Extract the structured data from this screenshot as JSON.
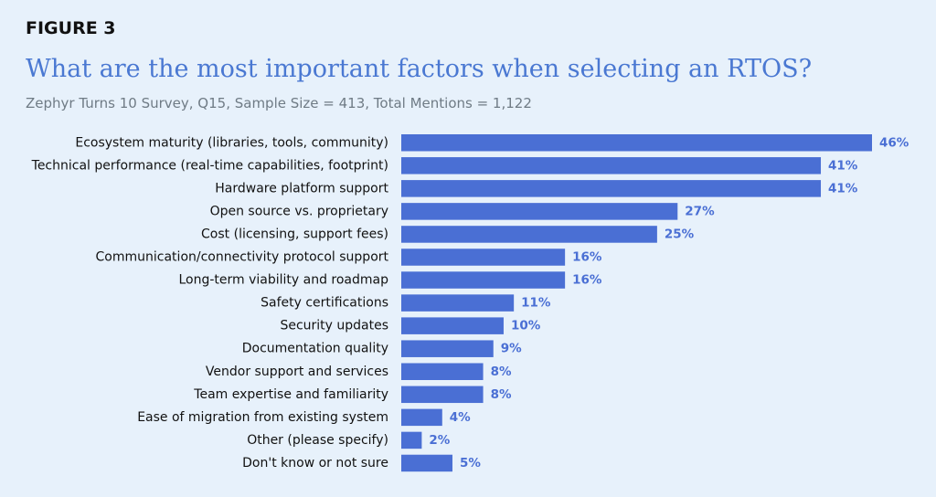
{
  "figure_label": "FIGURE 3",
  "chart_data": {
    "type": "bar",
    "orientation": "horizontal",
    "title": "What are the most important factors when selecting an RTOS?",
    "subtitle": "Zephyr Turns 10 Survey, Q15, Sample Size = 413, Total Mentions = 1,122",
    "categories": [
      "Ecosystem maturity (libraries, tools, community)",
      "Technical performance (real-time capabilities, footprint)",
      "Hardware platform support",
      "Open source vs. proprietary",
      "Cost (licensing, support fees)",
      "Communication/connectivity protocol support",
      "Long-term viability and roadmap",
      "Safety certifications",
      "Security updates",
      "Documentation quality",
      "Vendor support and services",
      "Team expertise and familiarity",
      "Ease of migration from existing system",
      "Other (please specify)",
      "Don't know or not sure"
    ],
    "values": [
      46,
      41,
      41,
      27,
      25,
      16,
      16,
      11,
      10,
      9,
      8,
      8,
      4,
      2,
      5
    ],
    "value_labels": [
      "46%",
      "41%",
      "41%",
      "27%",
      "25%",
      "16%",
      "16%",
      "11%",
      "10%",
      "9%",
      "8%",
      "8%",
      "4%",
      "2%",
      "5%"
    ],
    "unit": "%",
    "xlim": [
      0,
      46
    ],
    "grid": false,
    "legend": "none",
    "bar_color": "#4a6fd4",
    "value_label_color": "#4a6fd4"
  }
}
